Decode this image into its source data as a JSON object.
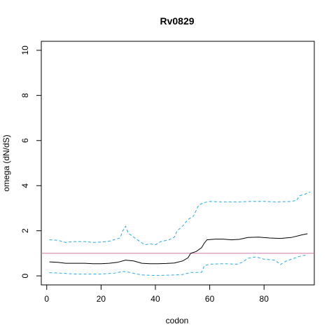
{
  "chart_data": {
    "type": "line",
    "title": "Rv0829",
    "xlabel": "codon",
    "ylabel": "omega (dN/dS)",
    "xlim": [
      -2,
      98.5
    ],
    "ylim": [
      -0.4,
      10.4
    ],
    "xticks": [
      0,
      20,
      40,
      60,
      80
    ],
    "yticks": [
      0,
      2,
      4,
      6,
      8,
      10
    ],
    "grid": false,
    "reference_line": {
      "y": 1,
      "color": "#cc79a7"
    },
    "series": [
      {
        "role": "mean",
        "color": "#000000",
        "dash": "solid",
        "points": [
          [
            1,
            0.62
          ],
          [
            4,
            0.6
          ],
          [
            7,
            0.56
          ],
          [
            10,
            0.56
          ],
          [
            14,
            0.56
          ],
          [
            17,
            0.54
          ],
          [
            20,
            0.54
          ],
          [
            23,
            0.56
          ],
          [
            26,
            0.6
          ],
          [
            29,
            0.7
          ],
          [
            32,
            0.66
          ],
          [
            35,
            0.56
          ],
          [
            38,
            0.54
          ],
          [
            41,
            0.54
          ],
          [
            44,
            0.55
          ],
          [
            47,
            0.57
          ],
          [
            50,
            0.66
          ],
          [
            52,
            0.8
          ],
          [
            53,
            1.0
          ],
          [
            55,
            1.08
          ],
          [
            57,
            1.25
          ],
          [
            58,
            1.45
          ],
          [
            59,
            1.6
          ],
          [
            62,
            1.63
          ],
          [
            65,
            1.63
          ],
          [
            68,
            1.6
          ],
          [
            71,
            1.62
          ],
          [
            74,
            1.7
          ],
          [
            78,
            1.72
          ],
          [
            82,
            1.68
          ],
          [
            86,
            1.66
          ],
          [
            90,
            1.7
          ],
          [
            94,
            1.82
          ],
          [
            96,
            1.87
          ]
        ]
      },
      {
        "role": "upper",
        "color": "#29a8e6",
        "dash": "dashed",
        "points": [
          [
            1,
            1.6
          ],
          [
            4,
            1.58
          ],
          [
            7,
            1.48
          ],
          [
            10,
            1.52
          ],
          [
            14,
            1.52
          ],
          [
            17,
            1.48
          ],
          [
            20,
            1.5
          ],
          [
            23,
            1.54
          ],
          [
            27,
            1.68
          ],
          [
            28,
            2.0
          ],
          [
            29,
            2.2
          ],
          [
            30,
            1.9
          ],
          [
            32,
            1.72
          ],
          [
            34,
            1.55
          ],
          [
            36,
            1.38
          ],
          [
            38,
            1.42
          ],
          [
            40,
            1.38
          ],
          [
            42,
            1.52
          ],
          [
            45,
            1.6
          ],
          [
            47,
            1.72
          ],
          [
            48,
            2.0
          ],
          [
            50,
            2.2
          ],
          [
            52,
            2.5
          ],
          [
            54,
            2.65
          ],
          [
            55,
            2.9
          ],
          [
            56,
            3.15
          ],
          [
            58,
            3.25
          ],
          [
            60,
            3.3
          ],
          [
            65,
            3.28
          ],
          [
            70,
            3.28
          ],
          [
            75,
            3.3
          ],
          [
            80,
            3.3
          ],
          [
            85,
            3.28
          ],
          [
            90,
            3.3
          ],
          [
            92,
            3.35
          ],
          [
            93,
            3.55
          ],
          [
            95,
            3.62
          ],
          [
            97,
            3.72
          ]
        ]
      },
      {
        "role": "lower",
        "color": "#29a8e6",
        "dash": "dashed",
        "points": [
          [
            1,
            0.14
          ],
          [
            5,
            0.12
          ],
          [
            10,
            0.08
          ],
          [
            15,
            0.08
          ],
          [
            20,
            0.08
          ],
          [
            25,
            0.12
          ],
          [
            28,
            0.2
          ],
          [
            30,
            0.17
          ],
          [
            33,
            0.08
          ],
          [
            36,
            0.03
          ],
          [
            40,
            0.02
          ],
          [
            45,
            0.03
          ],
          [
            50,
            0.06
          ],
          [
            53,
            0.15
          ],
          [
            55,
            0.15
          ],
          [
            57,
            0.16
          ],
          [
            58,
            0.45
          ],
          [
            60,
            0.52
          ],
          [
            65,
            0.54
          ],
          [
            70,
            0.52
          ],
          [
            72,
            0.6
          ],
          [
            74,
            0.78
          ],
          [
            77,
            0.84
          ],
          [
            80,
            0.74
          ],
          [
            84,
            0.7
          ],
          [
            86,
            0.5
          ],
          [
            88,
            0.65
          ],
          [
            91,
            0.78
          ],
          [
            94,
            0.9
          ],
          [
            96,
            0.92
          ]
        ]
      }
    ]
  }
}
